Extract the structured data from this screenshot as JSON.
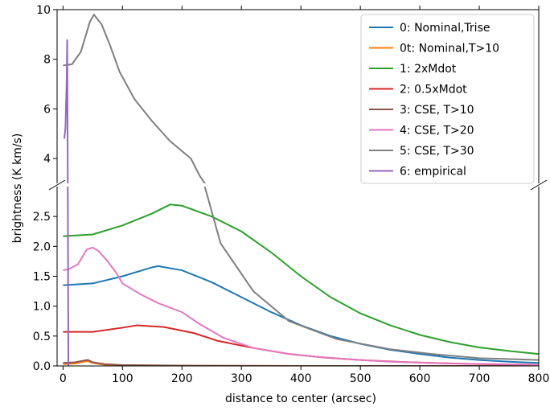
{
  "chart_data": {
    "type": "line",
    "ylabel": "brightness (K km/s)",
    "xlabel": "distance to center (arcsec)",
    "xlim": [
      -10,
      800
    ],
    "xticks": [
      0,
      100,
      200,
      300,
      400,
      500,
      600,
      700,
      800
    ],
    "broken_axis": true,
    "legend": "upper right",
    "panels": [
      {
        "ylim": [
          3,
          10
        ],
        "yticks": [
          4,
          6,
          8,
          10
        ]
      },
      {
        "ylim": [
          0,
          3
        ],
        "yticks": [
          {
            "value": 0,
            "label": "0.0"
          },
          0.5,
          {
            "value": 1,
            "label": "1.0"
          },
          1.5,
          {
            "value": 2,
            "label": "2.0"
          },
          2.5
        ]
      }
    ],
    "series": [
      {
        "name": "0: Nominal,Trise",
        "color": "#1f77b4",
        "x": [
          0,
          50,
          100,
          150,
          160,
          200,
          250,
          300,
          350,
          400,
          450,
          500,
          550,
          600,
          650,
          700,
          750,
          800
        ],
        "values": [
          1.35,
          1.38,
          1.5,
          1.65,
          1.67,
          1.6,
          1.4,
          1.15,
          0.9,
          0.68,
          0.5,
          0.37,
          0.27,
          0.2,
          0.14,
          0.1,
          0.07,
          0.05
        ]
      },
      {
        "name": "0t: Nominal,T>10",
        "color": "#ff7f0e",
        "x": [
          0,
          20,
          35,
          42,
          50,
          70,
          100,
          200,
          400,
          800
        ],
        "values": [
          0.03,
          0.04,
          0.07,
          0.08,
          0.05,
          0.02,
          0.01,
          0.005,
          0,
          0
        ]
      },
      {
        "name": "1: 2xMdot",
        "color": "#2ca02c",
        "x": [
          0,
          50,
          100,
          150,
          180,
          200,
          250,
          300,
          350,
          400,
          450,
          500,
          550,
          600,
          650,
          700,
          750,
          800
        ],
        "values": [
          2.17,
          2.2,
          2.35,
          2.55,
          2.7,
          2.68,
          2.5,
          2.25,
          1.9,
          1.5,
          1.15,
          0.88,
          0.68,
          0.52,
          0.4,
          0.31,
          0.25,
          0.2
        ]
      },
      {
        "name": "2: 0.5xMdot",
        "color": "#d62728",
        "x": [
          0,
          50,
          100,
          125,
          170,
          220,
          260,
          320,
          380,
          440,
          500,
          560,
          620,
          700,
          800
        ],
        "values": [
          0.57,
          0.57,
          0.64,
          0.68,
          0.65,
          0.55,
          0.42,
          0.3,
          0.2,
          0.14,
          0.1,
          0.07,
          0.05,
          0.03,
          0.02
        ]
      },
      {
        "name": "3: CSE, T>10",
        "color": "#8c564b",
        "x": [
          0,
          20,
          35,
          42,
          50,
          70,
          100,
          200,
          400,
          800
        ],
        "values": [
          0.05,
          0.06,
          0.09,
          0.1,
          0.06,
          0.03,
          0.015,
          0.005,
          0,
          0
        ]
      },
      {
        "name": "4: CSE, T>20",
        "color": "#e377c2",
        "x": [
          0,
          10,
          25,
          40,
          50,
          60,
          75,
          90,
          100,
          130,
          160,
          200,
          230,
          270,
          320,
          380,
          430,
          500,
          550,
          650,
          800
        ],
        "values": [
          1.6,
          1.62,
          1.7,
          1.95,
          1.98,
          1.92,
          1.75,
          1.55,
          1.38,
          1.2,
          1.05,
          0.9,
          0.7,
          0.47,
          0.3,
          0.2,
          0.15,
          0.1,
          0.07,
          0.04,
          0.02
        ]
      },
      {
        "name": "5: CSE, T>30",
        "color": "#7f7f7f",
        "x": [
          0,
          15,
          30,
          45,
          52,
          65,
          80,
          95,
          120,
          150,
          180,
          215,
          230,
          265,
          320,
          380,
          460,
          550,
          620,
          700,
          800
        ],
        "values": [
          7.75,
          7.8,
          8.3,
          9.5,
          9.8,
          9.4,
          8.5,
          7.5,
          6.4,
          5.5,
          4.7,
          4.0,
          3.3,
          2.05,
          1.25,
          0.75,
          0.45,
          0.28,
          0.2,
          0.13,
          0.1
        ]
      },
      {
        "name": "6: empirical",
        "color": "#9467bd",
        "x": [
          2,
          4,
          6,
          7,
          8,
          9
        ],
        "values": [
          4.8,
          5.2,
          7.0,
          8.8,
          3.0,
          0
        ]
      }
    ]
  }
}
